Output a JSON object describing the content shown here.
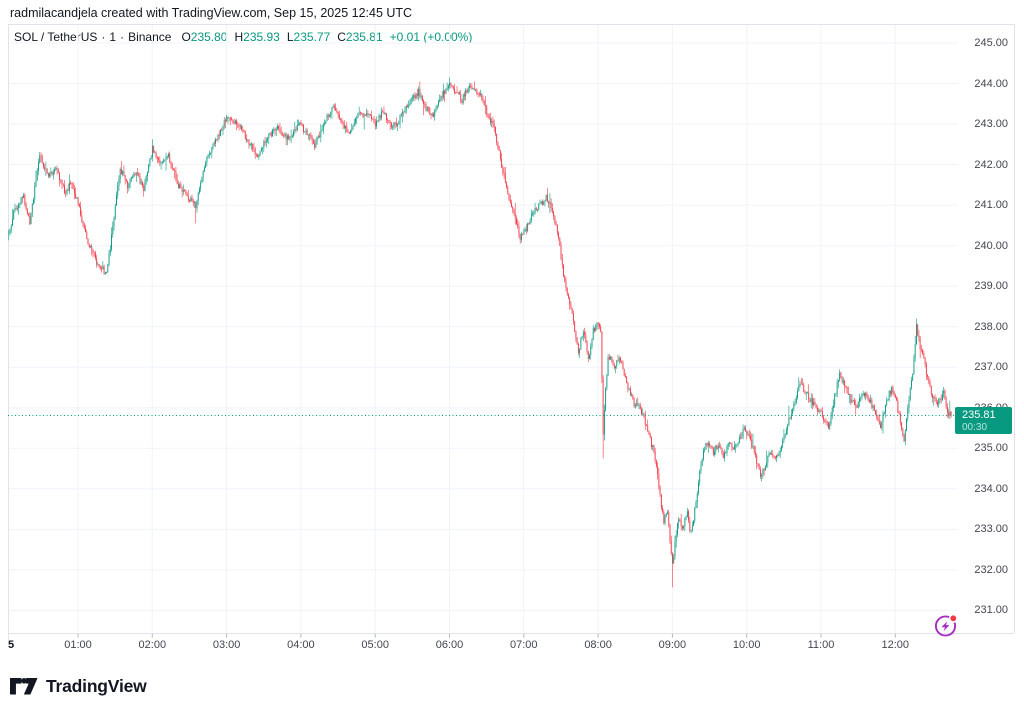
{
  "attribution": "radmilacandjela created with TradingView.com, Sep 15, 2025 12:45 UTC",
  "legend": {
    "symbol": "SOL / TetherUS",
    "separator": "·",
    "interval": "1",
    "exchange": "Binance",
    "ohlc": [
      {
        "label": "O",
        "value": "235.80"
      },
      {
        "label": "H",
        "value": "235.93"
      },
      {
        "label": "L",
        "value": "235.77"
      },
      {
        "label": "C",
        "value": "235.81"
      }
    ],
    "change": "+0.01 (+0.00%)"
  },
  "price_badge": {
    "price": "235.81",
    "countdown": "00:30"
  },
  "footer": {
    "brand": "TradingView"
  },
  "colors": {
    "up": "#089981",
    "down": "#f23645",
    "grid": "#f0f3fa",
    "border": "#e0e3eb",
    "tick": "#b2b5be",
    "axis_text": "#434651",
    "text": "#131722",
    "badge_bg": "#089981",
    "last_price_line": "#089981",
    "alert_purple": "#a62cc2",
    "alert_dot_red": "#f23645"
  },
  "chart_data": {
    "type": "candlestick",
    "title": "SOL / TetherUS · 1 · Binance",
    "symbol": "SOL/USDT",
    "exchange": "Binance",
    "interval_minutes": 1,
    "snapshot_time_utc": "Sep 15, 2025 12:45 UTC",
    "current": {
      "open": 235.8,
      "high": 235.93,
      "low": 235.77,
      "close": 235.81,
      "change": "+0.01",
      "change_pct": "+0.00%"
    },
    "last_price_line": 235.81,
    "session_high": 244.15,
    "session_low": 231.57,
    "y_axis": {
      "min": 231,
      "max": 245,
      "tick_step": 1,
      "labels": [
        "245.00",
        "244.00",
        "243.00",
        "242.00",
        "241.00",
        "240.00",
        "239.00",
        "238.00",
        "237.00",
        "236.00",
        "235.00",
        "234.00",
        "233.00",
        "232.00",
        "231.00"
      ]
    },
    "x_axis": {
      "date_label": "5",
      "hour_labels": [
        "01:00",
        "02:00",
        "03:00",
        "04:00",
        "05:00",
        "06:00",
        "07:00",
        "08:00",
        "09:00",
        "10:00",
        "11:00",
        "12:00"
      ],
      "start": "00:04",
      "end": "12:44"
    },
    "grid": true,
    "legend_position": "top-left",
    "price_path_minute_price": [
      [
        4,
        240.3
      ],
      [
        9,
        240.9
      ],
      [
        16,
        241.2
      ],
      [
        21,
        240.6
      ],
      [
        29,
        242.2
      ],
      [
        36,
        241.7
      ],
      [
        42,
        241.9
      ],
      [
        50,
        241.3
      ],
      [
        55,
        241.6
      ],
      [
        60,
        241.0
      ],
      [
        68,
        240.1
      ],
      [
        75,
        239.6
      ],
      [
        83,
        239.3
      ],
      [
        87,
        240.2
      ],
      [
        94,
        241.9
      ],
      [
        100,
        241.5
      ],
      [
        107,
        241.8
      ],
      [
        113,
        241.4
      ],
      [
        120,
        242.4
      ],
      [
        126,
        242.0
      ],
      [
        133,
        242.2
      ],
      [
        141,
        241.5
      ],
      [
        149,
        241.2
      ],
      [
        155,
        241.0
      ],
      [
        162,
        242.0
      ],
      [
        170,
        242.5
      ],
      [
        180,
        243.2
      ],
      [
        189,
        243.0
      ],
      [
        197,
        242.6
      ],
      [
        205,
        242.2
      ],
      [
        213,
        242.7
      ],
      [
        222,
        242.9
      ],
      [
        230,
        242.6
      ],
      [
        238,
        243.0
      ],
      [
        244,
        242.8
      ],
      [
        251,
        242.5
      ],
      [
        259,
        243.0
      ],
      [
        266,
        243.5
      ],
      [
        272,
        243.1
      ],
      [
        279,
        242.8
      ],
      [
        285,
        243.2
      ],
      [
        293,
        243.3
      ],
      [
        300,
        243.0
      ],
      [
        306,
        243.3
      ],
      [
        313,
        242.9
      ],
      [
        319,
        243.1
      ],
      [
        327,
        243.5
      ],
      [
        335,
        243.8
      ],
      [
        341,
        243.4
      ],
      [
        347,
        243.2
      ],
      [
        354,
        243.7
      ],
      [
        360,
        244.0
      ],
      [
        365,
        243.8
      ],
      [
        370,
        243.6
      ],
      [
        375,
        243.9
      ],
      [
        380,
        243.9
      ],
      [
        385,
        243.7
      ],
      [
        390,
        243.3
      ],
      [
        396,
        242.9
      ],
      [
        402,
        242.0
      ],
      [
        407,
        241.3
      ],
      [
        412,
        240.8
      ],
      [
        417,
        240.2
      ],
      [
        422,
        240.4
      ],
      [
        427,
        240.8
      ],
      [
        433,
        241.0
      ],
      [
        438,
        241.2
      ],
      [
        443,
        240.9
      ],
      [
        448,
        240.2
      ],
      [
        452,
        239.3
      ],
      [
        456,
        238.7
      ],
      [
        460,
        238.1
      ],
      [
        464,
        237.4
      ],
      [
        468,
        237.9
      ],
      [
        472,
        237.2
      ],
      [
        476,
        237.9
      ],
      [
        480,
        238.1
      ],
      [
        482,
        237.9
      ],
      [
        484,
        235.4
      ],
      [
        486,
        236.4
      ],
      [
        488,
        237.3
      ],
      [
        493,
        237.0
      ],
      [
        497,
        237.3
      ],
      [
        501,
        236.8
      ],
      [
        505,
        236.4
      ],
      [
        509,
        236.1
      ],
      [
        513,
        236.0
      ],
      [
        517,
        235.7
      ],
      [
        521,
        235.3
      ],
      [
        525,
        234.9
      ],
      [
        528,
        234.3
      ],
      [
        531,
        233.6
      ],
      [
        533,
        233.2
      ],
      [
        536,
        233.5
      ],
      [
        538,
        232.7
      ],
      [
        540,
        232.1
      ],
      [
        543,
        232.9
      ],
      [
        545,
        233.3
      ],
      [
        548,
        233.0
      ],
      [
        552,
        233.4
      ],
      [
        554,
        232.9
      ],
      [
        557,
        233.2
      ],
      [
        561,
        234.2
      ],
      [
        565,
        234.9
      ],
      [
        569,
        235.2
      ],
      [
        573,
        234.9
      ],
      [
        577,
        235.1
      ],
      [
        581,
        234.8
      ],
      [
        585,
        235.1
      ],
      [
        590,
        235.0
      ],
      [
        595,
        235.3
      ],
      [
        599,
        235.5
      ],
      [
        603,
        235.2
      ],
      [
        607,
        234.8
      ],
      [
        611,
        234.3
      ],
      [
        615,
        234.6
      ],
      [
        619,
        234.9
      ],
      [
        623,
        234.7
      ],
      [
        627,
        235.0
      ],
      [
        631,
        235.4
      ],
      [
        635,
        235.8
      ],
      [
        639,
        236.1
      ],
      [
        643,
        236.6
      ],
      [
        647,
        236.4
      ],
      [
        651,
        236.2
      ],
      [
        656,
        236.0
      ],
      [
        661,
        235.8
      ],
      [
        666,
        235.5
      ],
      [
        670,
        236.1
      ],
      [
        675,
        236.9
      ],
      [
        679,
        236.5
      ],
      [
        684,
        236.2
      ],
      [
        689,
        236.0
      ],
      [
        694,
        236.4
      ],
      [
        699,
        236.2
      ],
      [
        704,
        235.9
      ],
      [
        708,
        235.5
      ],
      [
        712,
        236.1
      ],
      [
        717,
        236.5
      ],
      [
        721,
        236.1
      ],
      [
        724,
        235.6
      ],
      [
        727,
        235.2
      ],
      [
        730,
        236.0
      ],
      [
        734,
        236.9
      ],
      [
        737,
        238.0
      ],
      [
        740,
        237.5
      ],
      [
        743,
        237.2
      ],
      [
        746,
        236.7
      ],
      [
        749,
        236.4
      ],
      [
        753,
        236.1
      ],
      [
        756,
        236.2
      ],
      [
        759,
        236.4
      ],
      [
        762,
        235.9
      ],
      [
        765,
        235.81
      ]
    ],
    "wick_events": [
      {
        "t": 29,
        "high": 242.3
      },
      {
        "t": 155,
        "low": 240.55
      },
      {
        "t": 360,
        "high": 244.15
      },
      {
        "t": 380,
        "high": 244.05
      },
      {
        "t": 484,
        "low": 234.75
      },
      {
        "t": 540,
        "low": 231.57
      },
      {
        "t": 737,
        "high": 238.2
      }
    ],
    "up_color": "#089981",
    "down_color": "#f23645"
  }
}
